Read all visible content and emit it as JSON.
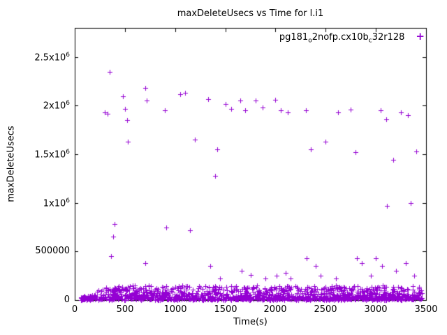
{
  "chart_data": {
    "type": "scatter",
    "title": "maxDeleteUsecs vs Time for l.i1",
    "xlabel": "Time(s)",
    "ylabel": "maxDeleteUsecs",
    "xlim": [
      0,
      3500
    ],
    "ylim": [
      0,
      2800000
    ],
    "grid": false,
    "legend_position": "top-right-inside",
    "x_ticks": [
      {
        "v": 0,
        "label": "0"
      },
      {
        "v": 500,
        "label": "500"
      },
      {
        "v": 1000,
        "label": "1000"
      },
      {
        "v": 1500,
        "label": "1500"
      },
      {
        "v": 2000,
        "label": "2000"
      },
      {
        "v": 2500,
        "label": "2500"
      },
      {
        "v": 3000,
        "label": "3000"
      },
      {
        "v": 3500,
        "label": "3500"
      }
    ],
    "y_ticks": [
      {
        "v": 0,
        "label": "0"
      },
      {
        "v": 500000,
        "label": "500000"
      },
      {
        "v": 1000000,
        "label": "1x10^6"
      },
      {
        "v": 1500000,
        "label": "1.5x10^6"
      },
      {
        "v": 2000000,
        "label": "2x10^6"
      },
      {
        "v": 2500000,
        "label": "2.5x10^6"
      }
    ],
    "series": [
      {
        "name": "pg181_o2nofp.cx10b_c32r128",
        "color": "#9400d3",
        "marker": "plus",
        "outlier_points": [
          [
            300,
            1930000
          ],
          [
            330,
            1915000
          ],
          [
            350,
            2350000
          ],
          [
            360,
            450000
          ],
          [
            385,
            650000
          ],
          [
            395,
            780000
          ],
          [
            480,
            2100000
          ],
          [
            500,
            1970000
          ],
          [
            520,
            1850000
          ],
          [
            530,
            1630000
          ],
          [
            700,
            2180000
          ],
          [
            705,
            380000
          ],
          [
            720,
            2050000
          ],
          [
            900,
            1950000
          ],
          [
            910,
            750000
          ],
          [
            1050,
            2120000
          ],
          [
            1100,
            2130000
          ],
          [
            1150,
            720000
          ],
          [
            1200,
            1650000
          ],
          [
            1330,
            2070000
          ],
          [
            1350,
            350000
          ],
          [
            1400,
            1280000
          ],
          [
            1420,
            1550000
          ],
          [
            1450,
            220000
          ],
          [
            1500,
            2020000
          ],
          [
            1560,
            1970000
          ],
          [
            1650,
            2050000
          ],
          [
            1660,
            300000
          ],
          [
            1700,
            1950000
          ],
          [
            1750,
            260000
          ],
          [
            1800,
            2050000
          ],
          [
            1870,
            1980000
          ],
          [
            1900,
            220000
          ],
          [
            2000,
            2060000
          ],
          [
            2010,
            250000
          ],
          [
            2050,
            1950000
          ],
          [
            2100,
            280000
          ],
          [
            2120,
            1930000
          ],
          [
            2150,
            220000
          ],
          [
            2300,
            1950000
          ],
          [
            2310,
            430000
          ],
          [
            2350,
            1550000
          ],
          [
            2400,
            350000
          ],
          [
            2450,
            250000
          ],
          [
            2500,
            1630000
          ],
          [
            2600,
            220000
          ],
          [
            2620,
            1930000
          ],
          [
            2750,
            1960000
          ],
          [
            2800,
            1520000
          ],
          [
            2810,
            430000
          ],
          [
            2860,
            380000
          ],
          [
            2950,
            250000
          ],
          [
            3000,
            430000
          ],
          [
            3050,
            1950000
          ],
          [
            3060,
            350000
          ],
          [
            3100,
            1860000
          ],
          [
            3110,
            970000
          ],
          [
            3170,
            1440000
          ],
          [
            3200,
            300000
          ],
          [
            3250,
            1930000
          ],
          [
            3300,
            380000
          ],
          [
            3320,
            1900000
          ],
          [
            3350,
            1000000
          ],
          [
            3380,
            250000
          ],
          [
            3400,
            1530000
          ]
        ],
        "baseline_band": {
          "description": "dense band of samples hugging the x-axis across the whole run",
          "count": 1500,
          "x_min": 60,
          "x_max": 3460,
          "y_min": 0,
          "y_max": 140000,
          "y_max_early": 35000,
          "ramp_start": 150,
          "ramp_end": 300,
          "skew": 2.4,
          "seed": 12345
        }
      }
    ]
  },
  "legend": {
    "marker_char": "+",
    "label_plain": "pg181_o2nofp.cx10b_c32r128",
    "label_parts": [
      {
        "text": "pg181",
        "sub": false
      },
      {
        "text": "o",
        "sub": true
      },
      {
        "text": "2nofp.cx10b",
        "sub": false
      },
      {
        "text": "c",
        "sub": true
      },
      {
        "text": "32r128",
        "sub": false
      }
    ]
  }
}
